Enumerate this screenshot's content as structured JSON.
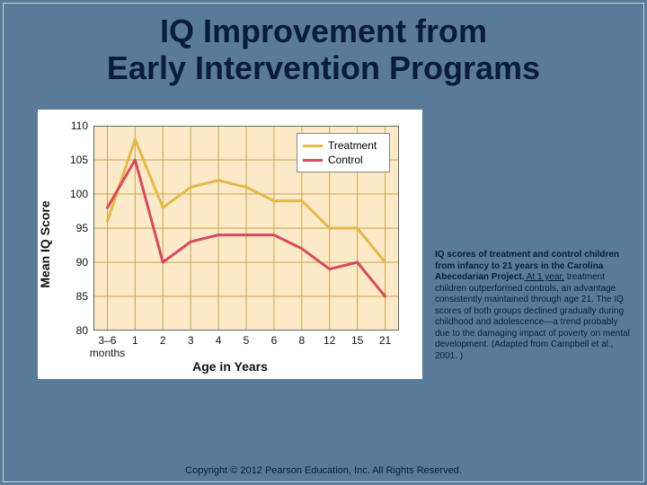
{
  "title_line1": "IQ Improvement from",
  "title_line2": "Early Intervention Programs",
  "chart": {
    "type": "line",
    "background_color": "#5a7a9a",
    "plot_bg": "#fce9c8",
    "panel_bg": "#ffffff",
    "grid_color": "#c9a24a",
    "axis_color": "#666666",
    "xlabel": "Age in Years",
    "ylabel": "Mean IQ Score",
    "label_fontsize": 14,
    "tick_fontsize": 12,
    "ylim": [
      80,
      110
    ],
    "yticks": [
      80,
      85,
      90,
      95,
      100,
      105,
      110
    ],
    "x_categories": [
      "3–6\nmonths",
      "1",
      "2",
      "3",
      "4",
      "5",
      "6",
      "8",
      "12",
      "15",
      "21"
    ],
    "series": [
      {
        "name": "Treatment",
        "color": "#e4b84a",
        "line_width": 3,
        "values": [
          96,
          108,
          98,
          101,
          102,
          101,
          99,
          99,
          95,
          95,
          90
        ]
      },
      {
        "name": "Control",
        "color": "#d64a5f",
        "line_width": 3,
        "values": [
          98,
          105,
          90,
          93,
          94,
          94,
          94,
          92,
          89,
          90,
          85
        ]
      }
    ],
    "legend": {
      "position": "top-right",
      "border_color": "#888888",
      "bg": "#ffffff"
    }
  },
  "caption": {
    "bold": "IQ scores of treatment and control children from infancy to 21 years in the Carolina Abecedarian Project.",
    "underlined": " At 1 year,",
    "rest": " treatment children outperformed controls, an advantage consistently maintained through age 21. The IQ scores of both groups declined gradually during childhood and adolescence—a trend probably due to the damaging impact of poverty on mental development. (Adapted from Campbell et al., 2001. )"
  },
  "footer": "Copyright © 2012 Pearson Education, Inc. All Rights Reserved."
}
